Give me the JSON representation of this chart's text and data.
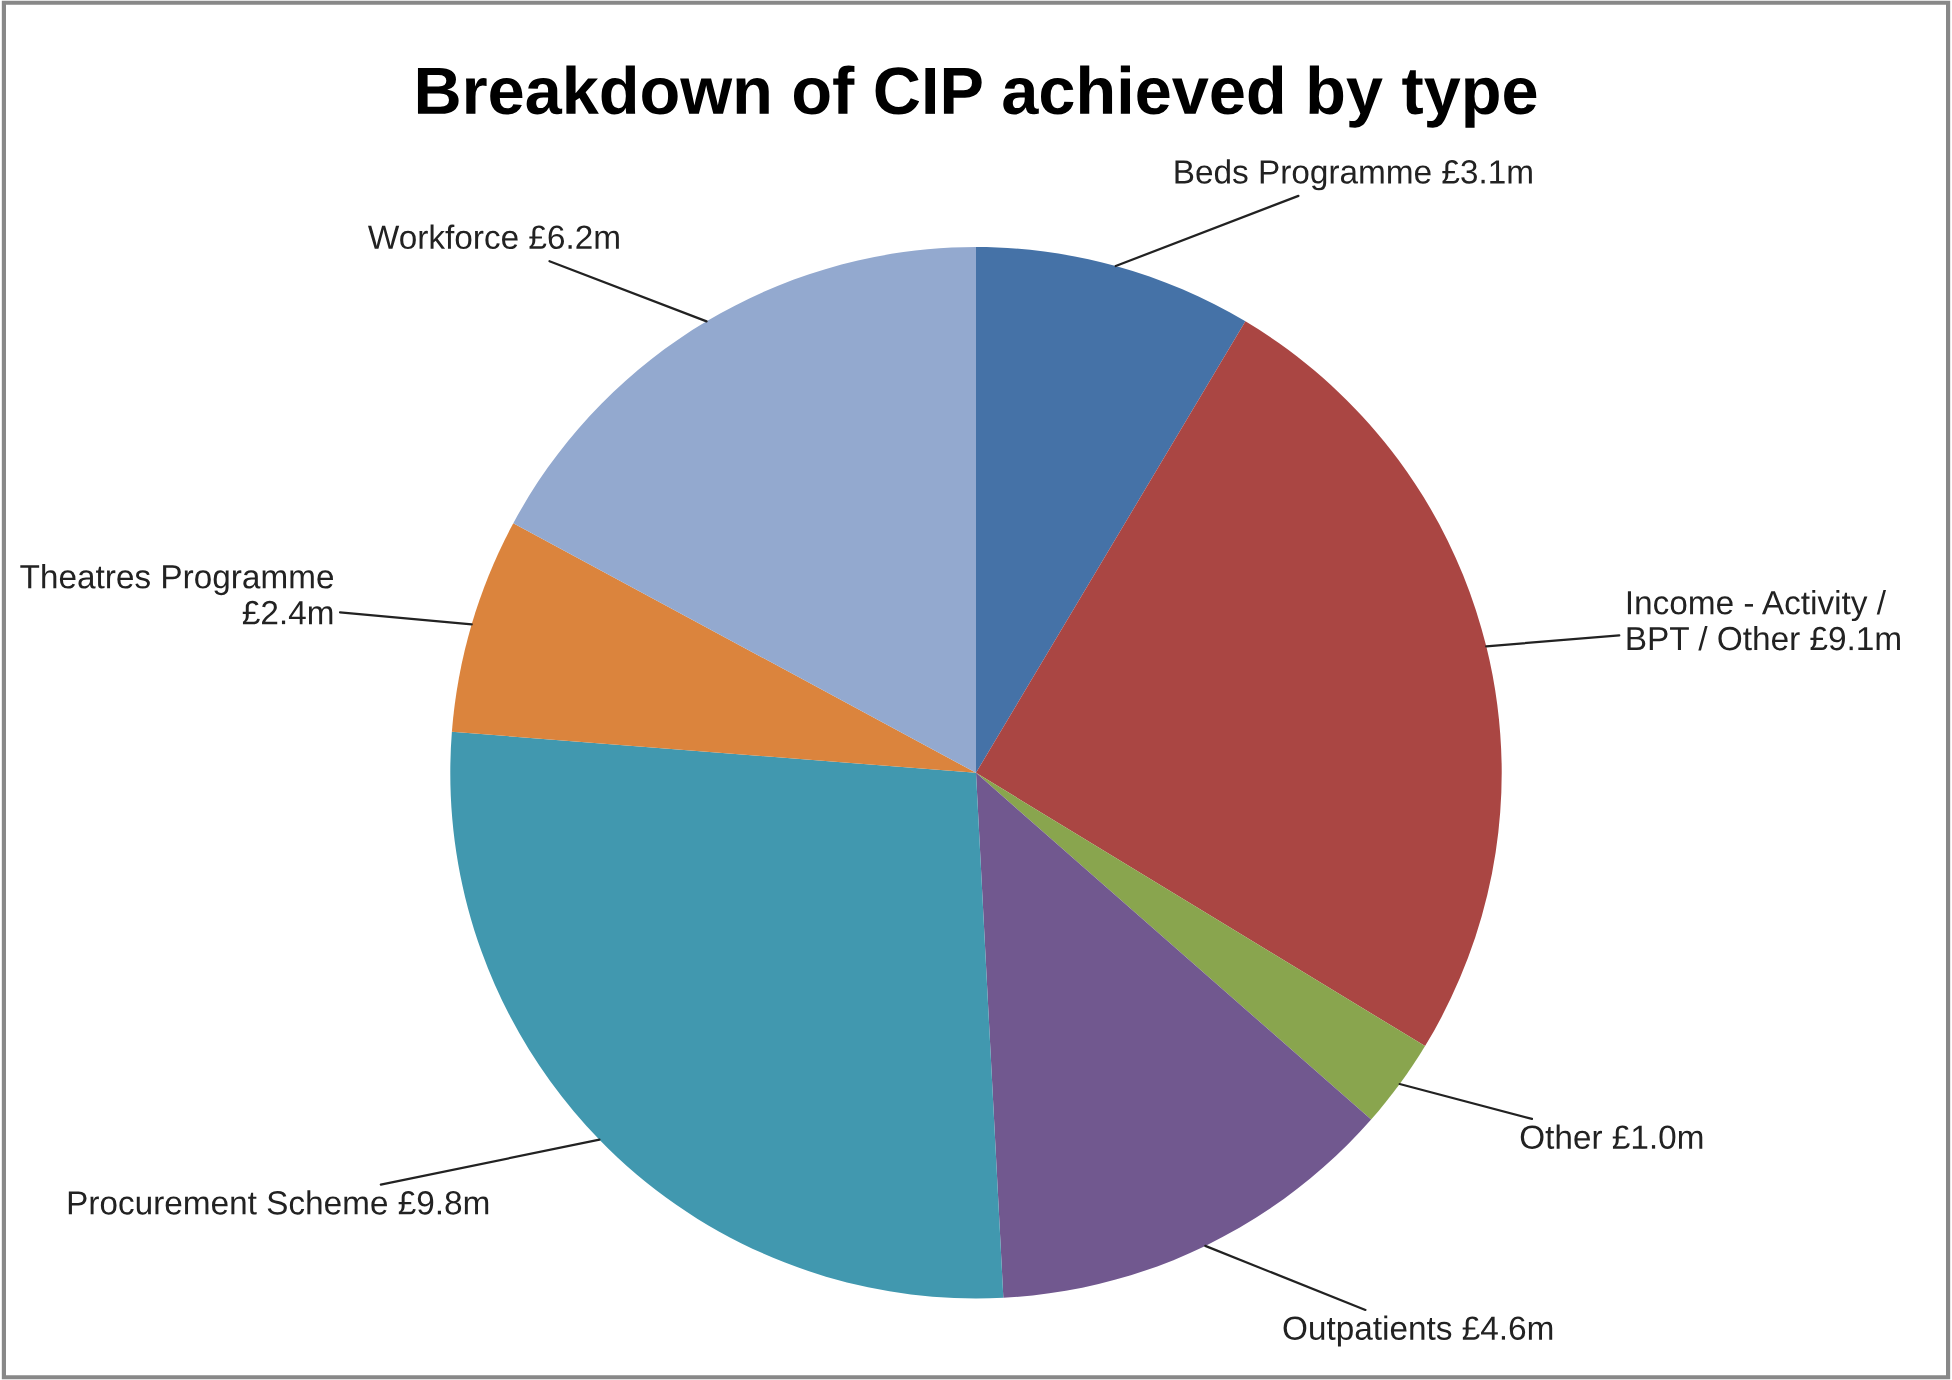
{
  "chart_data": {
    "type": "pie",
    "title": "Breakdown of CIP achieved by type",
    "categories": [
      "Beds Programme",
      "Income - Activity / BPT / Other",
      "Other",
      "Outpatients",
      "Procurement Scheme",
      "Theatres Programme",
      "Workforce"
    ],
    "values": [
      3.1,
      9.1,
      1.0,
      4.6,
      9.8,
      2.4,
      6.2
    ],
    "value_labels": [
      "£3.1m",
      "£9.1m",
      "£1.0m",
      "£4.6m",
      "£9.8m",
      "£2.4m",
      "£6.2m"
    ],
    "colors": [
      "#4572a7",
      "#aa4643",
      "#89a54e",
      "#71588f",
      "#4198af",
      "#db843d",
      "#93a9cf"
    ],
    "legend": false
  }
}
